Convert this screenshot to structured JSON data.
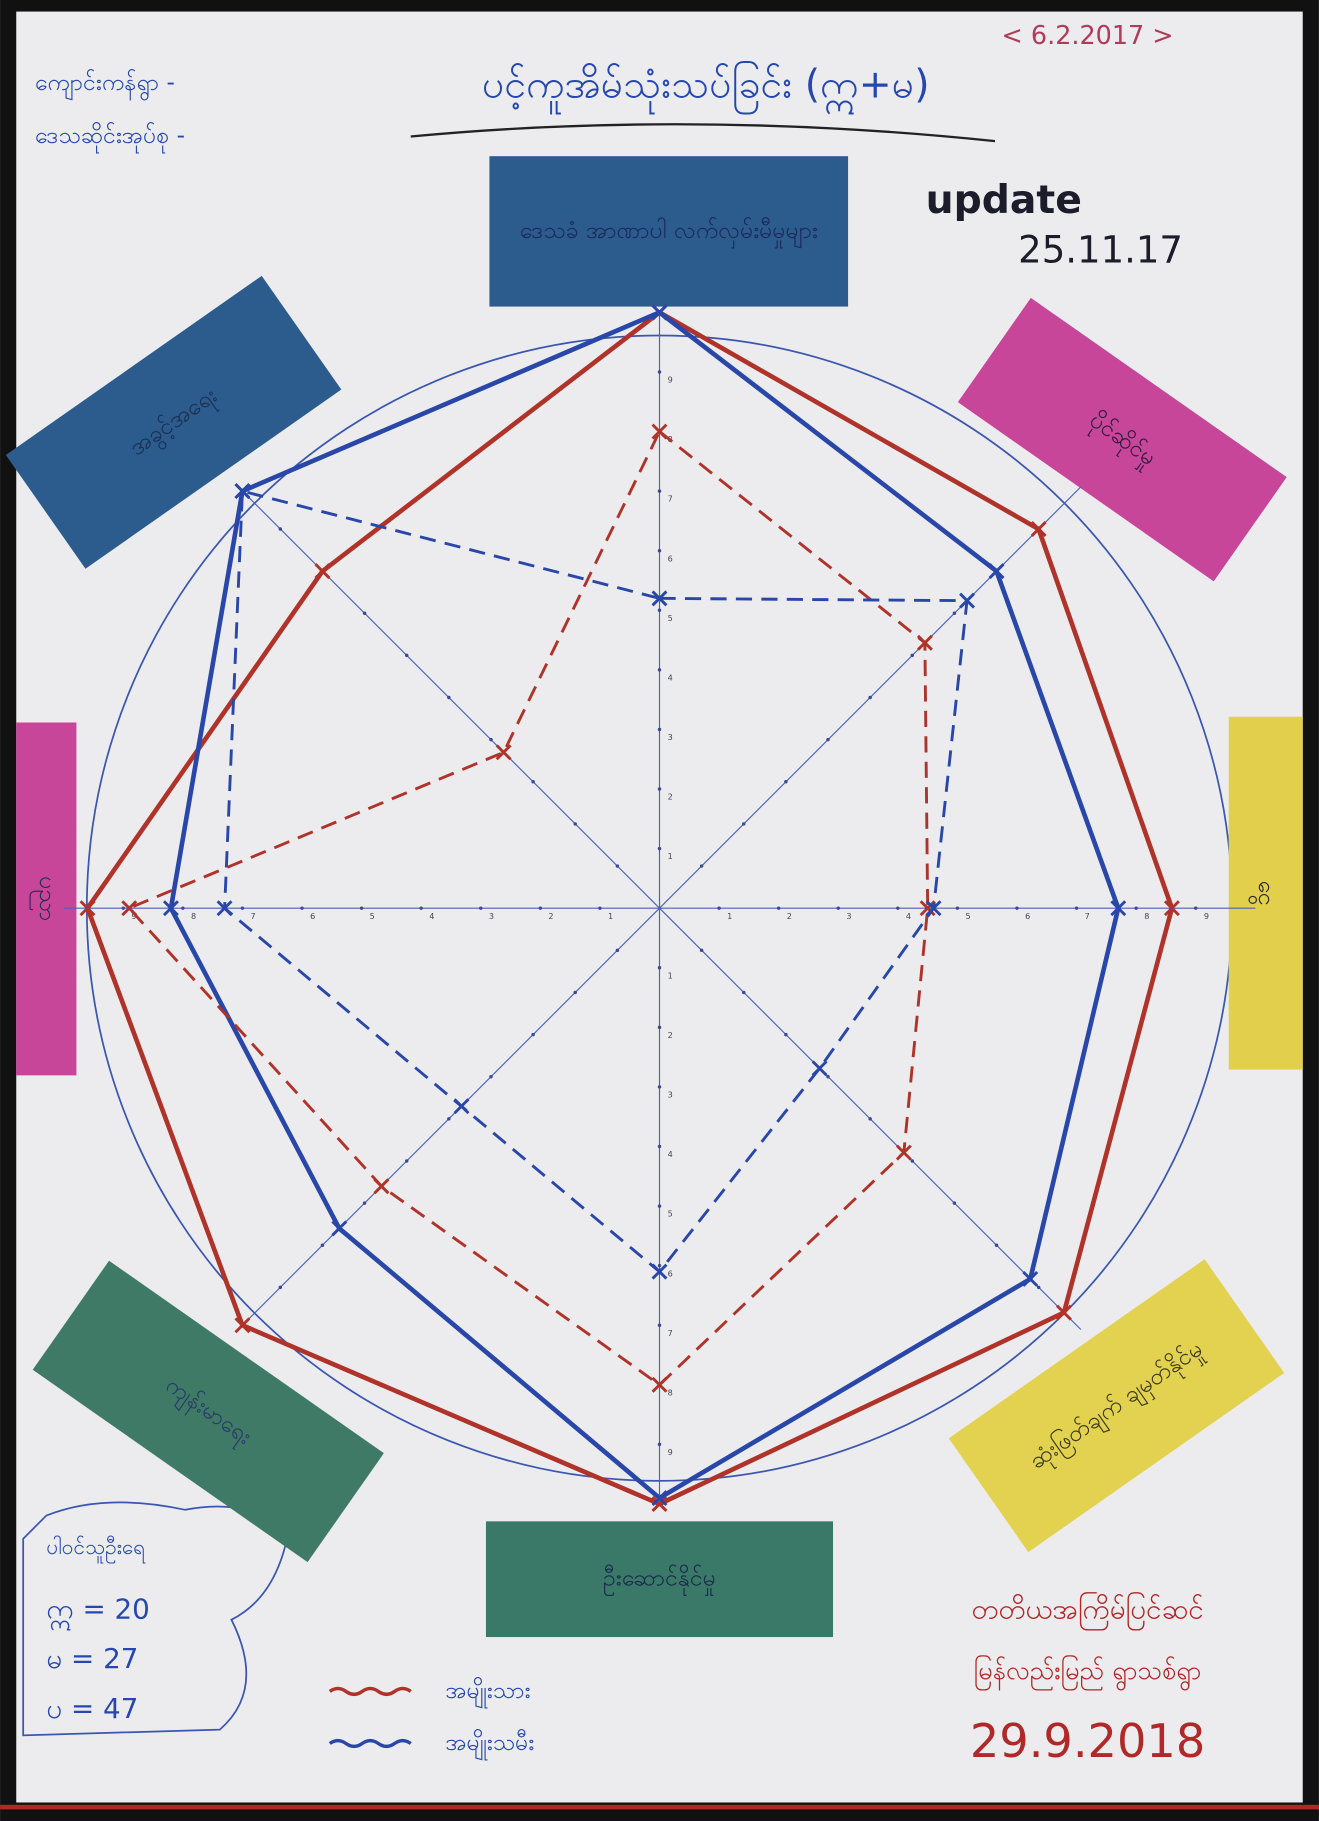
{
  "chart_data": {
    "type": "radar",
    "title": "ပင့်ကူအိမ်သုံးသပ်ခြင်း (ဣ+မ)",
    "date_original": "< 6.2.2017 >",
    "update_label": "update",
    "update_date": "25.11.17",
    "village": [
      "ကျောင်းကန်ရွာ -",
      "ဒေသဆိုင်းအုပ်စု -"
    ],
    "categories": [
      "ဒေသခံ အာဏာပါ လက်လှမ်းမီမှုများ",
      "ပိုင်ဆိုင်မှု",
      "ငွေ",
      "ဆုံးဖြတ်ချက် ချမှတ်နိုင်မှု",
      "ဦးဆောင်နိုင်မှု",
      "ကျန်းမာရေး",
      "ပညာ",
      "အခွင့်အရေး"
    ],
    "rlim": [
      0,
      10
    ],
    "rticks": [
      1,
      2,
      3,
      4,
      5,
      6,
      7,
      8,
      9
    ],
    "series": [
      {
        "name": "အမျိုးသား",
        "color": "#b0332a",
        "style": "wavy",
        "values": [
          10,
          9,
          8.6,
          9.6,
          10,
          9.9,
          9.6,
          8
        ]
      },
      {
        "name": "အမျိုးသမီး",
        "color": "#2947a8",
        "style": "wavy",
        "values": [
          10,
          8,
          7.7,
          8.8,
          9.9,
          7.6,
          8.2,
          9.9
        ]
      },
      {
        "color": "#b0332a",
        "style": "dashed",
        "values": [
          8,
          6.3,
          4.5,
          5.8,
          8,
          6.6,
          8.9,
          3.7
        ]
      },
      {
        "color": "#2947a8",
        "style": "dashed",
        "values": [
          5.2,
          7.3,
          4.6,
          3.8,
          6.1,
          4.7,
          7.3,
          9.9
        ]
      }
    ],
    "participants": {
      "title": "ပါဝင်သူဦးရေ",
      "rows": [
        "ဣ = 20",
        "မ = 27",
        "ပ = 47"
      ]
    },
    "footer": [
      "တတိယအကြိမ်ပြင်ဆင်",
      "မြန်လည်းမြည် ရွာသစ်ရွာ",
      "29.9.2018"
    ]
  }
}
